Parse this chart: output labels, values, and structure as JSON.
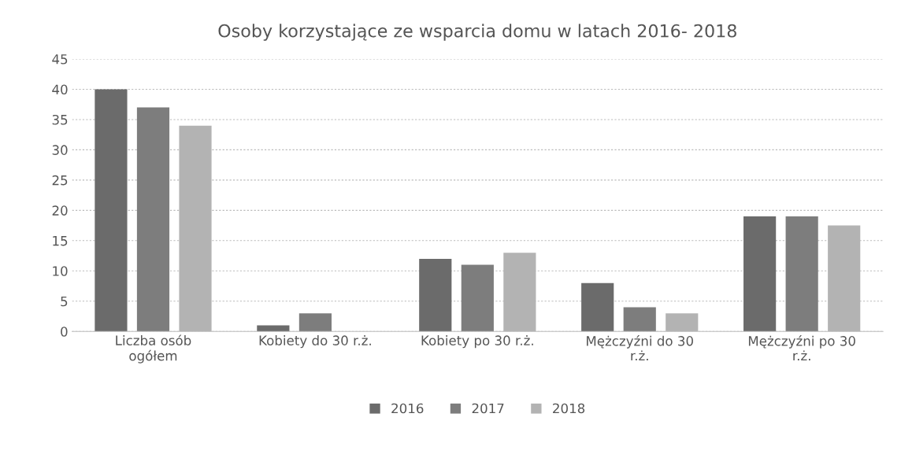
{
  "chart_data": {
    "type": "bar",
    "title": "Osoby korzystające ze wsparcia domu w latach 2016- 2018",
    "categories": [
      "Liczba osób\nogółem",
      "Kobiety do 30 r.ż.",
      "Kobiety po 30 r.ż.",
      "Mężczyźni do 30\nr.ż.",
      "Mężczyźni po 30\nr.ż."
    ],
    "series": [
      {
        "name": "2016",
        "color": "#6b6b6b",
        "values": [
          40,
          1,
          12,
          8,
          19
        ]
      },
      {
        "name": "2017",
        "color": "#7d7d7d",
        "values": [
          37,
          3,
          11,
          4,
          19
        ]
      },
      {
        "name": "2018",
        "color": "#b3b3b3",
        "values": [
          34,
          0,
          13,
          3,
          17.5
        ]
      }
    ],
    "ylim": [
      0,
      45
    ],
    "yticks": [
      0,
      5,
      10,
      15,
      20,
      25,
      30,
      35,
      40,
      45
    ],
    "grid": "y",
    "legend": "bottom"
  }
}
